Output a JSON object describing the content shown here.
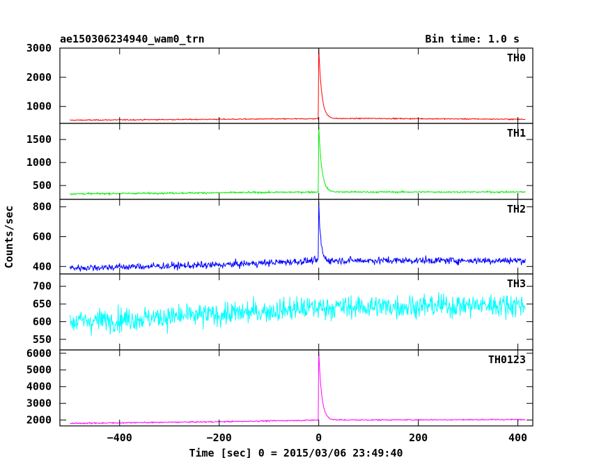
{
  "header": {
    "left_title": "ae150306234940_wam0_trn",
    "right_title": "Bin time: 1.0 s"
  },
  "xlabel": "Time [sec] 0 = 2015/03/06 23:49:40",
  "ylabel": "Counts/sec",
  "chart_data": [
    {
      "type": "line",
      "name": "TH0",
      "color": "#ff0000",
      "xlim": [
        -520,
        430
      ],
      "ylim": [
        420,
        3000
      ],
      "yticks": [
        1000,
        2000,
        3000
      ],
      "xticks": [
        -400,
        -200,
        0,
        200,
        400
      ],
      "x_range": [
        -500,
        415
      ],
      "baseline": [
        [
          -500,
          530
        ],
        [
          -100,
          570
        ],
        [
          0,
          580
        ],
        [
          100,
          590
        ],
        [
          415,
          560
        ]
      ],
      "noise": 15,
      "burst": {
        "t0": 0,
        "peak": 3000,
        "decay": 6
      },
      "label": "TH0"
    },
    {
      "type": "line",
      "name": "TH1",
      "color": "#00ee00",
      "xlim": [
        -520,
        430
      ],
      "ylim": [
        200,
        1850
      ],
      "yticks": [
        500,
        1000,
        1500
      ],
      "xticks": [
        -400,
        -200,
        0,
        200,
        400
      ],
      "x_range": [
        -500,
        415
      ],
      "baseline": [
        [
          -500,
          320
        ],
        [
          0,
          360
        ],
        [
          415,
          360
        ]
      ],
      "noise": 15,
      "burst": {
        "t0": 0,
        "peak": 1800,
        "decay": 6
      },
      "label": "TH1"
    },
    {
      "type": "line",
      "name": "TH2",
      "color": "#0000ff",
      "xlim": [
        -520,
        430
      ],
      "ylim": [
        350,
        850
      ],
      "yticks": [
        400,
        600,
        800
      ],
      "xticks": [
        -400,
        -200,
        0,
        200,
        400
      ],
      "x_range": [
        -500,
        415
      ],
      "baseline": [
        [
          -500,
          390
        ],
        [
          -200,
          410
        ],
        [
          0,
          440
        ],
        [
          100,
          440
        ],
        [
          415,
          440
        ]
      ],
      "noise": 20,
      "burst": {
        "t0": 0,
        "peak": 830,
        "decay": 4
      },
      "label": "TH2"
    },
    {
      "type": "line",
      "name": "TH3",
      "color": "#00ffff",
      "xlim": [
        -520,
        430
      ],
      "ylim": [
        520,
        735
      ],
      "yticks": [
        550,
        600,
        650,
        700
      ],
      "xticks": [
        -400,
        -200,
        0,
        200,
        400
      ],
      "x_range": [
        -500,
        415
      ],
      "baseline": [
        [
          -500,
          600
        ],
        [
          -200,
          620
        ],
        [
          0,
          640
        ],
        [
          415,
          648
        ]
      ],
      "noise": 28,
      "burst": null,
      "label": "TH3"
    },
    {
      "type": "line",
      "name": "TH0123",
      "color": "#ff00ff",
      "xlim": [
        -520,
        430
      ],
      "ylim": [
        1650,
        6200
      ],
      "yticks": [
        2000,
        3000,
        4000,
        5000,
        6000
      ],
      "xticks": [
        -400,
        -200,
        0,
        200,
        400
      ],
      "x_range": [
        -500,
        415
      ],
      "baseline": [
        [
          -500,
          1800
        ],
        [
          -200,
          1900
        ],
        [
          0,
          2000
        ],
        [
          415,
          2030
        ]
      ],
      "noise": 30,
      "burst": {
        "t0": 0,
        "peak": 6100,
        "decay": 6
      },
      "label": "TH0123"
    }
  ]
}
